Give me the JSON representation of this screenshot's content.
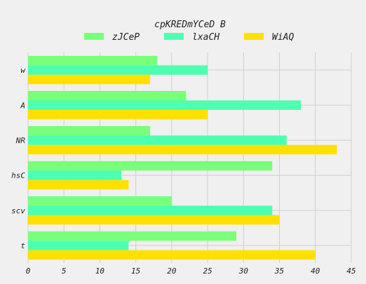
{
  "chart_data": {
    "type": "bar",
    "orientation": "horizontal",
    "title": "cpKREDmYCeD B",
    "categories": [
      "w",
      "A",
      "NR",
      "hsC",
      "scv",
      "t"
    ],
    "series": [
      {
        "name": "zJCeP",
        "color": "#7aff7a",
        "values": [
          18,
          22,
          17,
          34,
          20,
          29
        ]
      },
      {
        "name": "lxaCH",
        "color": "#4dffb0",
        "values": [
          25,
          38,
          36,
          13,
          34,
          14
        ]
      },
      {
        "name": "WiAQ",
        "color": "#ffe000",
        "values": [
          17,
          25,
          43,
          14,
          35,
          40
        ]
      }
    ],
    "xlim": [
      0,
      45
    ],
    "xticks": [
      "0",
      "5",
      "10",
      "15",
      "20",
      "25",
      "30",
      "35",
      "40",
      "45"
    ],
    "grid": true,
    "legend_position": "top"
  }
}
